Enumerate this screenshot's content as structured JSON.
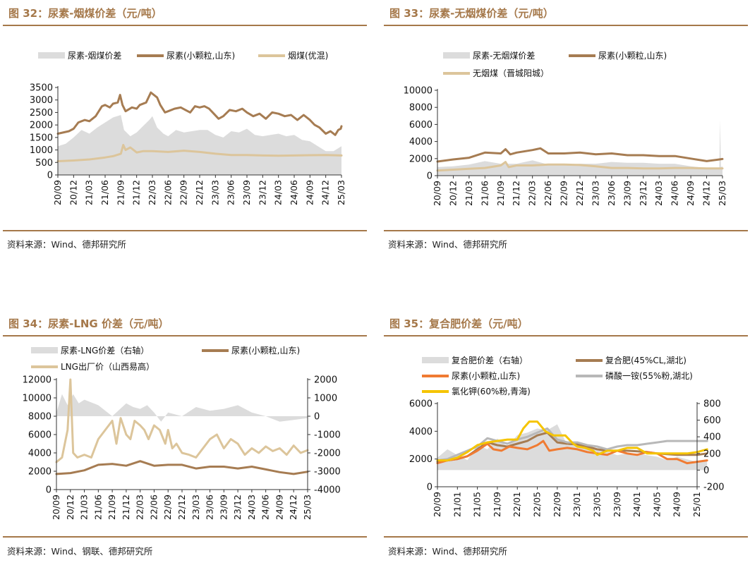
{
  "panels": [
    {
      "title": "图 32：尿素-烟煤价差（元/吨）",
      "source": "资料来源：Wind、德邦研究所",
      "legend": [
        "尿素-烟煤价差",
        "尿素(小颗粒,山东)",
        "烟煤(优混)"
      ]
    },
    {
      "title": "图 33：尿素-无烟煤价差（元/吨）",
      "source": "资料来源：Wind、德邦研究所",
      "legend": [
        "尿素-无烟煤价差",
        "尿素(小颗粒,山东)",
        "无烟煤（晋城阳城）"
      ]
    },
    {
      "title": "图 34：尿素-LNG 价差（元/吨）",
      "source": "资料来源：Wind、钢联、德邦研究所",
      "legend": [
        "尿素-LNG价差（右轴）",
        "尿素(小颗粒,山东)",
        "LNG出厂价（山西易高）"
      ]
    },
    {
      "title": "图 35：复合肥价差（元/吨）",
      "source": "资料来源：Wind、德邦研究所",
      "legend": [
        "复合肥价差（右轴）",
        "复合肥(45%CL,湖北)",
        "尿素(小颗粒,山东)",
        "磷酸一铵(55%粉,湖北)",
        "氯化钾(60%粉,青海)"
      ]
    }
  ],
  "colors": {
    "spread": "#dcdcdc",
    "urea": "#a67c52",
    "coal": "#dcc59b",
    "urea_orange": "#f07b32",
    "map_gray": "#b8b8b8",
    "potash": "#f5c400",
    "accent": "#a5784a"
  },
  "chart_data": [
    {
      "type": "line",
      "title": "尿素-烟煤价差（元/吨）",
      "x_ticks": [
        "20/09",
        "20/12",
        "21/03",
        "21/06",
        "21/09",
        "21/12",
        "22/03",
        "22/06",
        "22/09",
        "22/12",
        "23/03",
        "23/06",
        "23/09",
        "23/12",
        "24/03",
        "24/06",
        "24/09",
        "24/12",
        "25/03"
      ],
      "ylim": [
        0,
        3500
      ],
      "y_ticks": [
        0,
        500,
        1000,
        1500,
        2000,
        2500,
        3000,
        3500
      ],
      "series": [
        {
          "name": "尿素(小颗粒,山东)",
          "kind": "line",
          "x": [
            0,
            0.7,
            1,
            1.3,
            1.7,
            2,
            2.4,
            2.8,
            3,
            3.3,
            3.5,
            3.8,
            3.95,
            4.1,
            4.3,
            4.7,
            5,
            5.2,
            5.6,
            5.9,
            6,
            6.3,
            6.5,
            6.8,
            7,
            7.4,
            7.8,
            8.1,
            8.4,
            8.7,
            9,
            9.3,
            9.6,
            9.9,
            10.2,
            10.5,
            10.9,
            11.3,
            11.7,
            12,
            12.4,
            12.8,
            13.2,
            13.6,
            14,
            14.4,
            14.8,
            15.2,
            15.6,
            16,
            16.3,
            16.6,
            17,
            17.3,
            17.6,
            17.8,
            17.95,
            18
          ],
          "y": [
            1650,
            1750,
            1850,
            2100,
            2200,
            2150,
            2350,
            2750,
            2800,
            2700,
            2850,
            2900,
            3200,
            2800,
            2550,
            2700,
            2650,
            2800,
            2900,
            3300,
            3250,
            3100,
            2800,
            2500,
            2550,
            2650,
            2700,
            2600,
            2500,
            2750,
            2700,
            2750,
            2650,
            2450,
            2250,
            2350,
            2600,
            2550,
            2650,
            2500,
            2350,
            2450,
            2250,
            2500,
            2450,
            2350,
            2400,
            2200,
            2400,
            2200,
            2000,
            1900,
            1650,
            1750,
            1600,
            1800,
            1850,
            1950
          ]
        },
        {
          "name": "烟煤(优混)",
          "kind": "line",
          "x": [
            0,
            1,
            2,
            3,
            3.5,
            4,
            4.15,
            4.3,
            4.6,
            5,
            5.4,
            6,
            7,
            8,
            9,
            10,
            11,
            12,
            13,
            14,
            15,
            16,
            17,
            18
          ],
          "y": [
            550,
            580,
            620,
            700,
            750,
            850,
            1200,
            1000,
            1100,
            900,
            950,
            950,
            920,
            970,
            920,
            850,
            800,
            800,
            780,
            770,
            780,
            790,
            800,
            780
          ]
        },
        {
          "name": "尿素-烟煤价差",
          "kind": "area",
          "x": [
            0,
            0.5,
            1,
            1.5,
            2,
            2.5,
            3,
            3.5,
            4,
            4.2,
            4.6,
            5,
            5.4,
            5.8,
            6,
            6.3,
            6.7,
            7,
            7.5,
            8,
            8.5,
            9,
            9.5,
            10,
            10.5,
            11,
            11.5,
            12,
            12.5,
            13,
            13.5,
            14,
            14.5,
            15,
            15.5,
            16,
            16.5,
            17,
            17.5,
            18
          ],
          "y": [
            1150,
            1250,
            1500,
            1800,
            1650,
            1900,
            2100,
            2300,
            2400,
            1800,
            1550,
            1700,
            1950,
            2200,
            2350,
            1900,
            1650,
            1550,
            1800,
            1700,
            1750,
            1800,
            1800,
            1600,
            1500,
            1750,
            1700,
            1850,
            1600,
            1550,
            1600,
            1650,
            1550,
            1600,
            1400,
            1350,
            1150,
            950,
            950,
            1150
          ]
        }
      ]
    },
    {
      "type": "line",
      "title": "尿素-无烟煤价差（元/吨）",
      "x_ticks": [
        "20/09",
        "20/12",
        "21/03",
        "21/06",
        "21/09",
        "21/12",
        "22/03",
        "22/06",
        "22/09",
        "22/12",
        "23/03",
        "23/06",
        "23/09",
        "23/12",
        "24/03",
        "24/06",
        "24/09",
        "24/12",
        "25/03"
      ],
      "ylim": [
        0,
        10000
      ],
      "y_ticks": [
        0,
        2000,
        4000,
        6000,
        8000,
        10000
      ],
      "series": [
        {
          "name": "尿素(小颗粒,山东)",
          "kind": "line",
          "x": [
            0,
            1,
            2,
            3,
            4,
            4.3,
            4.6,
            5,
            6,
            6.5,
            7,
            8,
            9,
            10,
            11,
            12,
            13,
            14,
            15,
            16,
            17,
            18
          ],
          "y": [
            1650,
            1900,
            2100,
            2700,
            2600,
            3100,
            2500,
            2700,
            3000,
            3200,
            2600,
            2600,
            2700,
            2500,
            2600,
            2400,
            2400,
            2300,
            2300,
            2000,
            1700,
            1950
          ]
        },
        {
          "name": "无烟煤（晋城阳城）",
          "kind": "line",
          "x": [
            0,
            1,
            2,
            3,
            4,
            4.3,
            4.5,
            5,
            6,
            7,
            8,
            9,
            10,
            11,
            12,
            13,
            14,
            15,
            16,
            17,
            18
          ],
          "y": [
            600,
            700,
            800,
            900,
            1200,
            1600,
            1000,
            1200,
            1200,
            1300,
            1300,
            1250,
            1100,
            900,
            900,
            850,
            850,
            900,
            900,
            850,
            850
          ]
        },
        {
          "name": "尿素-无烟煤价差",
          "kind": "area",
          "x": [
            0,
            1,
            2,
            3,
            4,
            5,
            6,
            7,
            8,
            9,
            10,
            11,
            12,
            13,
            14,
            15,
            16,
            17,
            17.8,
            17.85,
            17.9,
            18
          ],
          "y": [
            1000,
            1100,
            1300,
            1700,
            1400,
            1400,
            1800,
            1300,
            1300,
            1400,
            1400,
            1600,
            1500,
            1500,
            1400,
            1400,
            1100,
            900,
            900,
            6500,
            1000,
            1100
          ]
        }
      ]
    },
    {
      "type": "line",
      "title": "尿素-LNG价差（元/吨）",
      "x_ticks": [
        "20/09",
        "20/12",
        "21/03",
        "21/06",
        "21/09",
        "21/12",
        "22/03",
        "22/06",
        "22/09",
        "22/12",
        "23/03",
        "23/06",
        "23/09",
        "23/12",
        "24/03",
        "24/06",
        "24/09",
        "24/12",
        "25/03"
      ],
      "ylim": [
        0,
        12000
      ],
      "y_ticks": [
        0,
        2000,
        4000,
        6000,
        8000,
        10000,
        12000
      ],
      "y2lim": [
        -4000,
        2000
      ],
      "y2_ticks": [
        2000,
        1000,
        0,
        -1000,
        -2000,
        -3000,
        -4000
      ],
      "series": [
        {
          "name": "尿素(小颗粒,山东)",
          "kind": "line",
          "x": [
            0,
            1,
            2,
            3,
            4,
            5,
            6,
            7,
            8,
            9,
            10,
            11,
            12,
            13,
            14,
            15,
            16,
            17,
            18
          ],
          "y": [
            1700,
            1800,
            2100,
            2700,
            2800,
            2600,
            3100,
            2600,
            2700,
            2700,
            2300,
            2500,
            2500,
            2300,
            2500,
            2200,
            1900,
            1700,
            1950
          ]
        },
        {
          "name": "LNG出厂价（山西易高）",
          "kind": "line",
          "x": [
            0,
            0.4,
            0.8,
            1,
            1.2,
            1.5,
            2,
            2.5,
            3,
            3.5,
            4,
            4.3,
            4.6,
            5,
            5.3,
            5.6,
            6,
            6.3,
            6.6,
            7,
            7.4,
            7.8,
            8,
            8.3,
            8.6,
            9,
            9.5,
            10,
            10.5,
            11,
            11.5,
            12,
            12.5,
            13,
            13.5,
            14,
            14.5,
            15,
            15.5,
            16,
            16.5,
            17,
            17.5,
            18
          ],
          "y": [
            3000,
            3500,
            6500,
            12000,
            4000,
            3500,
            3800,
            3500,
            5500,
            6500,
            7500,
            5000,
            7800,
            6000,
            5500,
            7500,
            7000,
            6500,
            5500,
            7000,
            6500,
            5000,
            6500,
            4500,
            5000,
            4000,
            3800,
            3500,
            4500,
            5500,
            6000,
            4500,
            5500,
            5000,
            3800,
            4500,
            4000,
            4700,
            4200,
            4500,
            3800,
            4800,
            4000,
            4300
          ]
        },
        {
          "name": "尿素-LNG价差（右轴）",
          "kind": "area",
          "x": [
            0,
            0.4,
            0.8,
            1.2,
            1.6,
            2,
            3,
            4,
            5,
            5.5,
            6,
            6.5,
            7,
            7.5,
            8,
            9,
            10,
            11,
            12,
            13,
            14,
            15,
            16,
            17,
            18
          ],
          "y": [
            200,
            1200,
            600,
            1200,
            700,
            900,
            600,
            0,
            700,
            500,
            400,
            600,
            200,
            -300,
            200,
            0,
            500,
            300,
            400,
            600,
            200,
            0,
            -300,
            -200,
            -100
          ]
        }
      ]
    },
    {
      "type": "line",
      "title": "复合肥价差（元/吨）",
      "x_ticks": [
        "20/09",
        "21/01",
        "21/05",
        "21/09",
        "22/01",
        "22/05",
        "22/09",
        "23/01",
        "23/05",
        "23/09",
        "24/01",
        "24/05",
        "24/09",
        "25/01"
      ],
      "ylim": [
        0,
        6000
      ],
      "y_ticks": [
        0,
        2000,
        4000,
        6000
      ],
      "y2lim": [
        -200,
        800
      ],
      "y2_ticks": [
        800,
        600,
        400,
        200,
        0,
        -200
      ],
      "series": [
        {
          "name": "复合肥(45%CL,湖北)",
          "kind": "line",
          "x": [
            0,
            0.5,
            1,
            1.5,
            2,
            2.5,
            3,
            3.5,
            4,
            4.5,
            5,
            5.5,
            6,
            6.5,
            7,
            7.5,
            8,
            8.5,
            9,
            9.5,
            10,
            10.5,
            11,
            11.5,
            12,
            12.5,
            13,
            13.5
          ],
          "y": [
            1800,
            1900,
            2000,
            2200,
            2700,
            3200,
            3000,
            2900,
            3100,
            3300,
            3700,
            3900,
            3200,
            3100,
            3050,
            2900,
            2700,
            2600,
            2600,
            2600,
            2550,
            2500,
            2400,
            2350,
            2300,
            2300,
            2300,
            2400
          ]
        },
        {
          "name": "尿素(小颗粒,山东)",
          "kind": "line",
          "x": [
            0,
            0.5,
            1,
            1.5,
            2,
            2.5,
            2.8,
            3.2,
            3.6,
            4,
            4.5,
            5,
            5.3,
            5.6,
            6,
            6.5,
            7,
            7.5,
            8,
            8.5,
            9,
            9.5,
            10,
            10.5,
            11,
            11.5,
            12,
            12.5,
            13,
            13.5
          ],
          "y": [
            1700,
            1900,
            2000,
            2200,
            2600,
            3100,
            2700,
            2600,
            2900,
            2800,
            2700,
            3000,
            3300,
            2600,
            2700,
            2800,
            2700,
            2500,
            2400,
            2300,
            2600,
            2400,
            2300,
            2500,
            2400,
            2000,
            2000,
            1700,
            1800,
            1900
          ]
        },
        {
          "name": "磷酸一铵(55%粉,湖北)",
          "kind": "line",
          "x": [
            0,
            0.5,
            1,
            1.5,
            2,
            2.5,
            3,
            3.5,
            4,
            4.5,
            5,
            5.5,
            6,
            6.5,
            7,
            7.5,
            8,
            8.5,
            9,
            9.5,
            10,
            10.5,
            11,
            11.5,
            12,
            12.5,
            13,
            13.5
          ],
          "y": [
            1900,
            2000,
            2300,
            2600,
            2900,
            3500,
            3300,
            3100,
            3400,
            3600,
            3900,
            4200,
            3400,
            3200,
            3200,
            3000,
            2900,
            2700,
            2900,
            3000,
            3000,
            3100,
            3200,
            3300,
            3300,
            3300,
            3300,
            3300
          ]
        },
        {
          "name": "氯化钾(60%粉,青海)",
          "kind": "line",
          "x": [
            0,
            0.5,
            1,
            1.5,
            2,
            2.5,
            3,
            3.5,
            4,
            4.3,
            4.6,
            5,
            5.4,
            5.8,
            6,
            6.4,
            6.8,
            7,
            7.4,
            7.8,
            8,
            8.5,
            9,
            9.5,
            10,
            10.5,
            11,
            11.5,
            12,
            12.5,
            13,
            13.5
          ],
          "y": [
            1900,
            1900,
            2100,
            2500,
            3000,
            3200,
            3300,
            3400,
            3400,
            4200,
            4700,
            4700,
            4000,
            3700,
            3700,
            3700,
            3100,
            2900,
            2800,
            2600,
            2300,
            2600,
            2600,
            2800,
            2800,
            2400,
            2400,
            2400,
            2400,
            2400,
            2500,
            2700
          ]
        },
        {
          "name": "复合肥价差（右轴）",
          "kind": "area",
          "x": [
            0,
            0.5,
            1,
            1.5,
            2,
            2.5,
            3,
            3.5,
            4,
            4.5,
            5,
            5.5,
            6,
            6.5,
            7,
            7.5,
            8,
            8.5,
            9,
            9.5,
            10,
            10.5,
            11,
            11.5,
            12,
            12.5,
            13,
            13.5
          ],
          "y": [
            150,
            250,
            180,
            120,
            300,
            250,
            380,
            280,
            420,
            450,
            500,
            480,
            550,
            300,
            320,
            280,
            250,
            220,
            180,
            200,
            200,
            180,
            160,
            120,
            160,
            130,
            100,
            120
          ]
        }
      ]
    }
  ]
}
